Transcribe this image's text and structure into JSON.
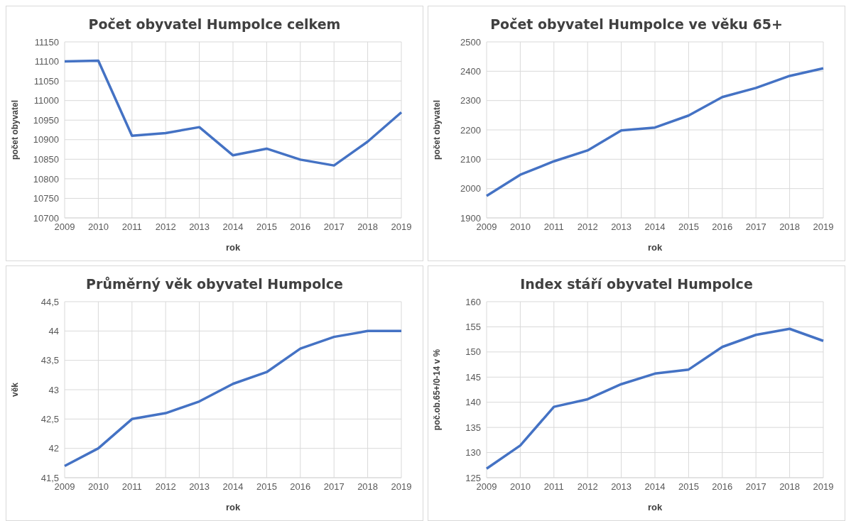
{
  "chart_data": [
    {
      "type": "line",
      "title": "Počet obyvatel Humpolce celkem",
      "xlabel": "rok",
      "ylabel": "počet obyvatel",
      "categories": [
        "2009",
        "2010",
        "2011",
        "2012",
        "2013",
        "2014",
        "2015",
        "2016",
        "2017",
        "2018",
        "2019"
      ],
      "series": [
        {
          "color": "#4472c4",
          "values": [
            11100,
            11102,
            10910,
            10917,
            10932,
            10860,
            10877,
            10849,
            10834,
            10895,
            10970
          ]
        }
      ],
      "ylim": [
        10700,
        11150
      ],
      "yticks": [
        10700,
        10750,
        10800,
        10850,
        10900,
        10950,
        11000,
        11050,
        11100,
        11150
      ],
      "grid": true,
      "marker": "none",
      "line_style": "solid"
    },
    {
      "type": "line",
      "title": "Počet obyvatel Humpolce ve věku 65+",
      "xlabel": "rok",
      "ylabel": "počet obyvatel",
      "categories": [
        "2009",
        "2010",
        "2011",
        "2012",
        "2013",
        "2014",
        "2015",
        "2016",
        "2017",
        "2018",
        "2019"
      ],
      "series": [
        {
          "color": "#4472c4",
          "values": [
            1975,
            2047,
            2093,
            2130,
            2198,
            2208,
            2249,
            2312,
            2343,
            2384,
            2410
          ]
        }
      ],
      "ylim": [
        1900,
        2500
      ],
      "yticks": [
        1900,
        2000,
        2100,
        2200,
        2300,
        2400,
        2500
      ],
      "grid": true,
      "marker": "none",
      "line_style": "solid"
    },
    {
      "type": "line",
      "title": "Průměrný věk obyvatel Humpolce",
      "xlabel": "rok",
      "ylabel": "věk",
      "categories": [
        "2009",
        "2010",
        "2011",
        "2012",
        "2013",
        "2014",
        "2015",
        "2016",
        "2017",
        "2018",
        "2019"
      ],
      "series": [
        {
          "color": "#4472c4",
          "values": [
            41.7,
            42.0,
            42.5,
            42.6,
            42.8,
            43.1,
            43.3,
            43.7,
            43.9,
            44.0,
            44.0
          ]
        }
      ],
      "ylim": [
        41.5,
        44.5
      ],
      "yticks": [
        {
          "value": 41.5,
          "label": "41,5"
        },
        42,
        {
          "value": 42.5,
          "label": "42,5"
        },
        43,
        {
          "value": 43.5,
          "label": "43,5"
        },
        44,
        {
          "value": 44.5,
          "label": "44,5"
        }
      ],
      "grid": true,
      "marker": "none",
      "line_style": "solid"
    },
    {
      "type": "line",
      "title": "Index stáří obyvatel Humpolce",
      "xlabel": "rok",
      "ylabel": "poč.ob.65+/0-14  v %",
      "categories": [
        "2009",
        "2010",
        "2011",
        "2012",
        "2013",
        "2014",
        "2015",
        "2016",
        "2017",
        "2018",
        "2019"
      ],
      "series": [
        {
          "color": "#4472c4",
          "values": [
            126.8,
            131.4,
            139.1,
            140.6,
            143.6,
            145.7,
            146.5,
            151.0,
            153.4,
            154.6,
            152.2
          ]
        }
      ],
      "ylim": [
        125,
        160
      ],
      "yticks": [
        125,
        130,
        135,
        140,
        145,
        150,
        155,
        160
      ],
      "grid": true,
      "marker": "none",
      "line_style": "solid"
    }
  ]
}
